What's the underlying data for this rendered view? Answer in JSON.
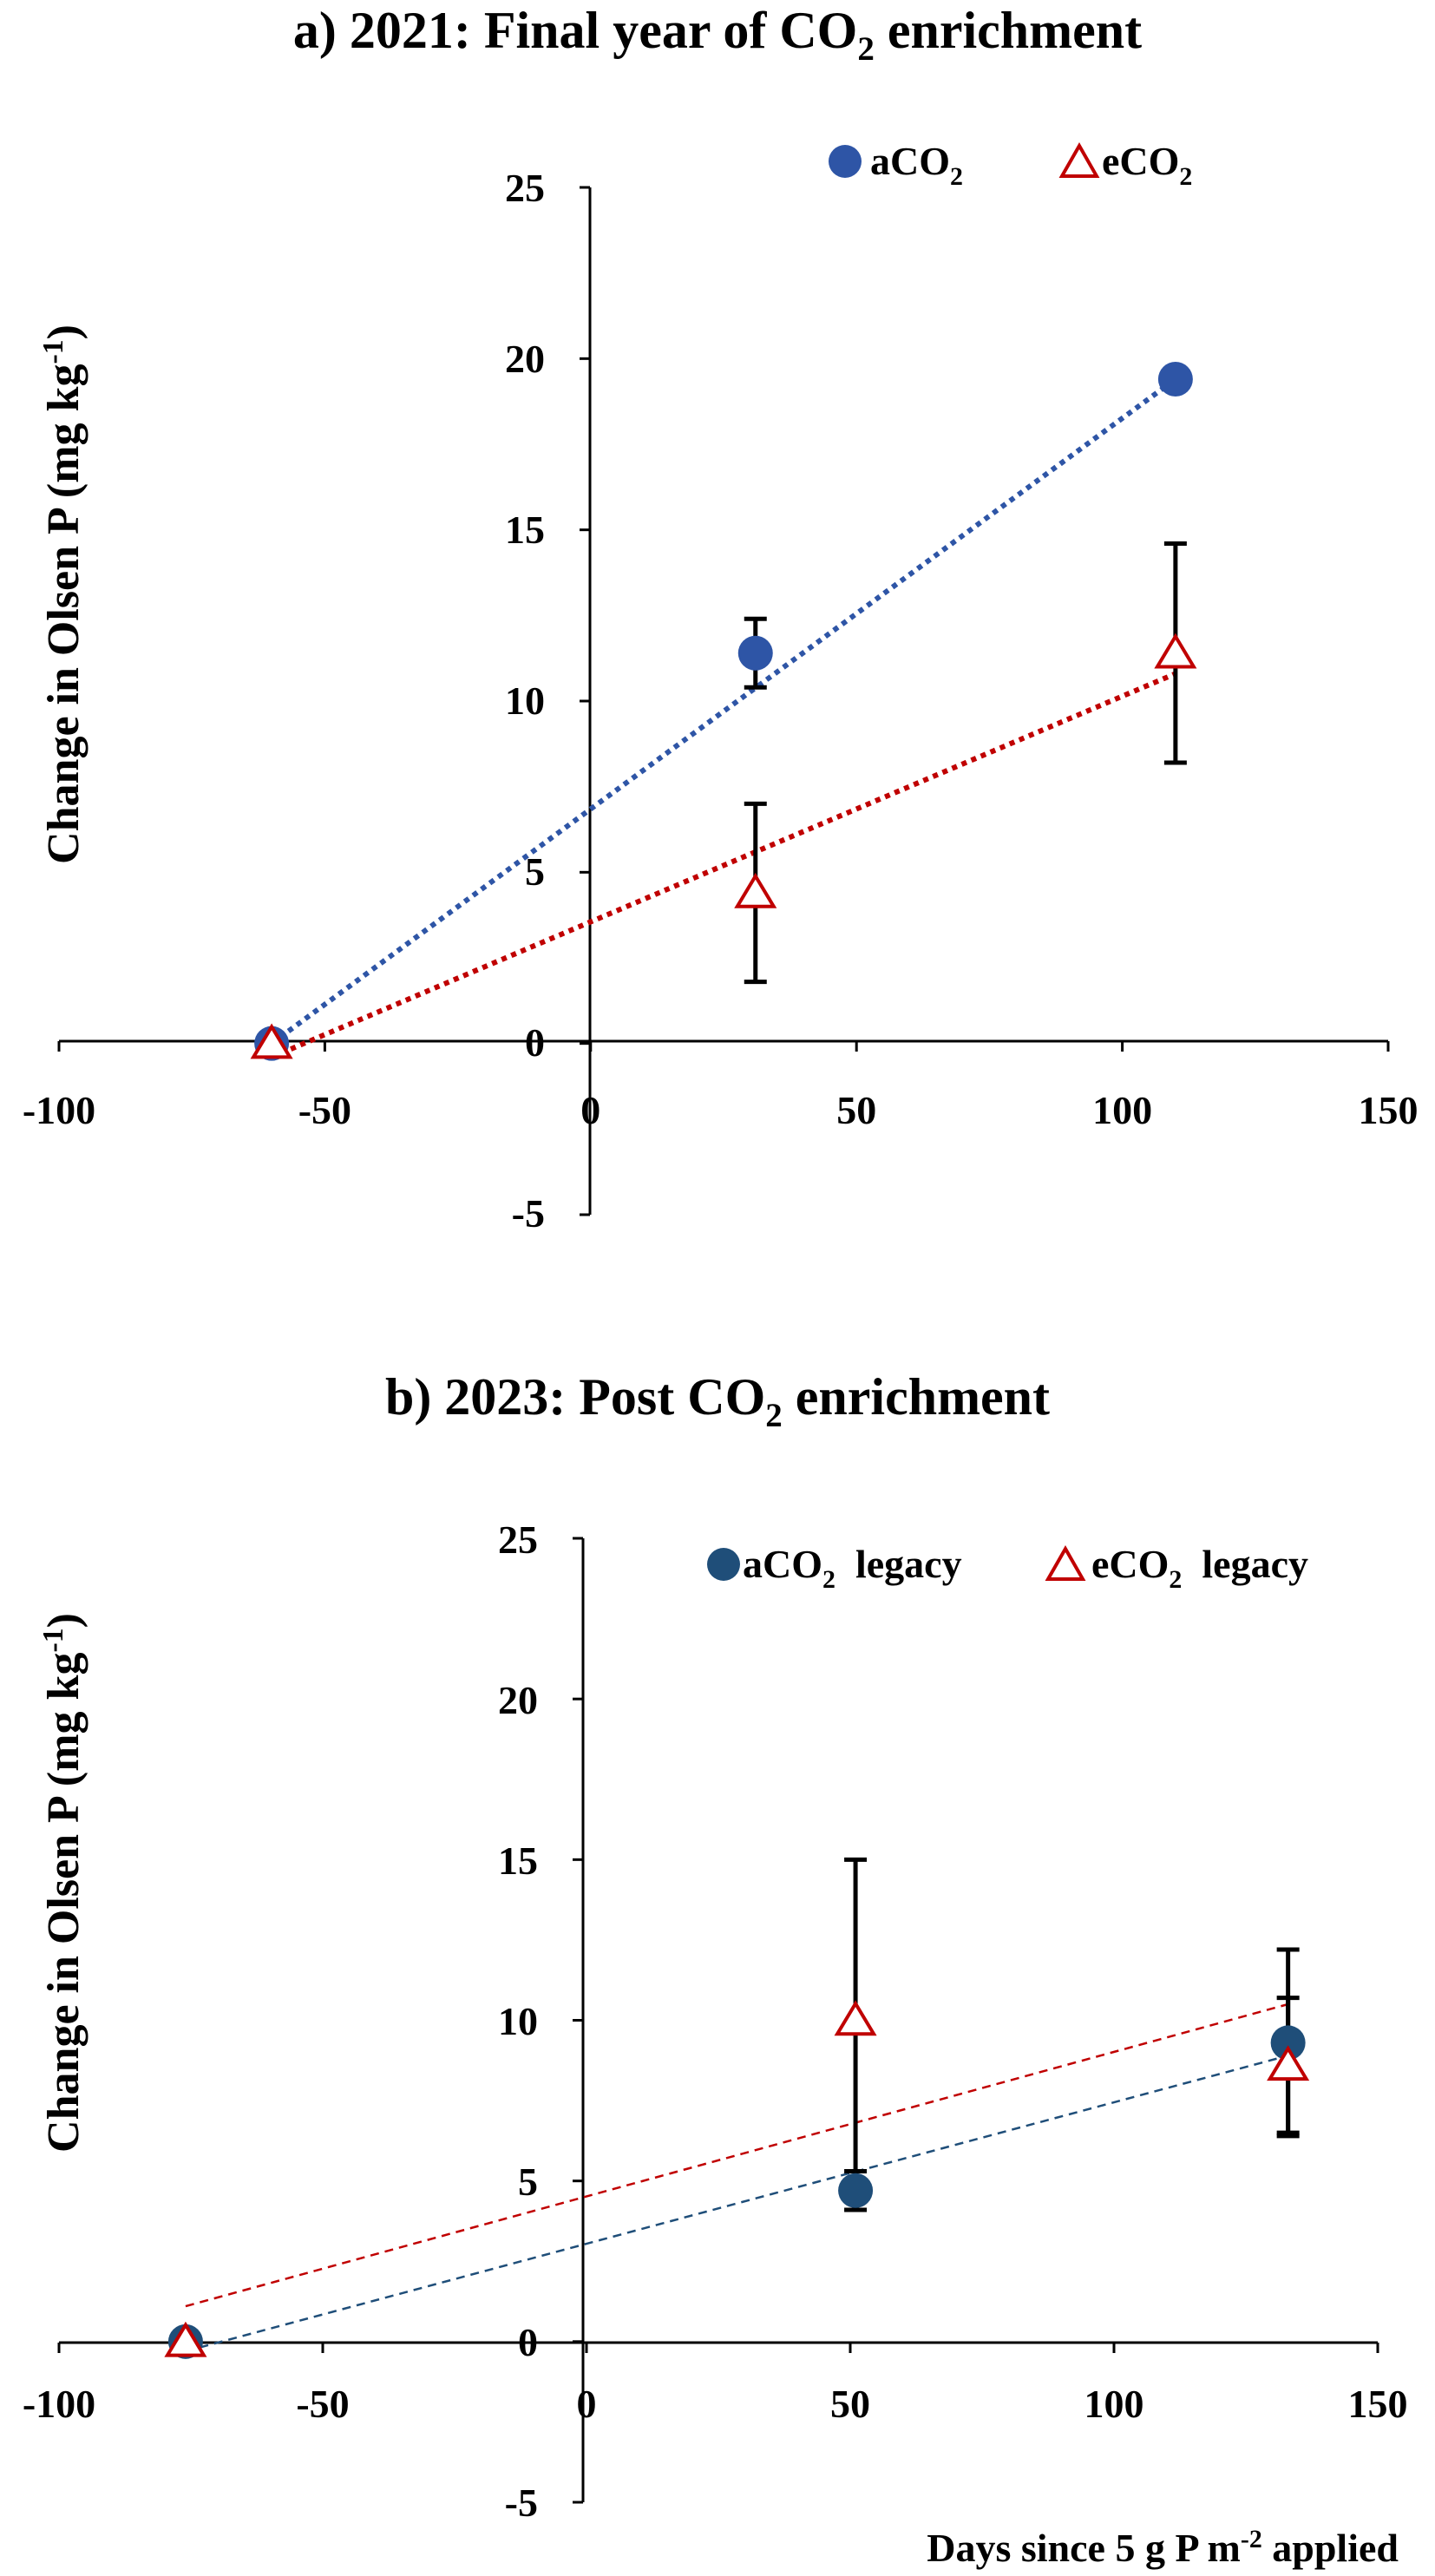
{
  "chart_data": [
    {
      "type": "scatter",
      "title": {
        "prefix": "a) 2021: Final year of CO",
        "sub": "2",
        "suffix": " enrichment"
      },
      "ylabel": {
        "main": "Change in Olsen P (mg kg",
        "sup": "-1",
        "end": ")"
      },
      "xlabel": "",
      "xlim": [
        -100,
        150
      ],
      "ylim": [
        -5,
        25
      ],
      "xticks": [
        "-100",
        "-50",
        "0",
        "50",
        "100",
        "150"
      ],
      "yticks": [
        "25",
        "20",
        "15",
        "10",
        "5",
        "0",
        "-5"
      ],
      "legend_position": "top-right",
      "series": [
        {
          "name": {
            "main": "aCO",
            "sub": "2",
            "end": ""
          },
          "marker": "circle",
          "color": "#2e55a6",
          "points": [
            {
              "x": -60,
              "y": 0,
              "err": 0
            },
            {
              "x": 31,
              "y": 11.4,
              "err": 1
            },
            {
              "x": 110,
              "y": 19.4,
              "err": 0
            }
          ],
          "trendline": {
            "from": [
              -60,
              0
            ],
            "to": [
              110,
              19.4
            ],
            "style": "dotted"
          }
        },
        {
          "name": {
            "main": "eCO",
            "sub": "2",
            "end": ""
          },
          "marker": "triangle",
          "color": "#c00000",
          "points": [
            {
              "x": -60,
              "y": 0,
              "err": 0
            },
            {
              "x": 31,
              "y": 4.4,
              "err": 2.6
            },
            {
              "x": 110,
              "y": 11.4,
              "err": 3.2
            }
          ],
          "trendline": {
            "from": [
              -60,
              -0.4
            ],
            "to": [
              110,
              10.8
            ],
            "style": "dotted"
          }
        }
      ]
    },
    {
      "type": "scatter",
      "title": {
        "prefix": "b) 2023: Post CO",
        "sub": "2",
        "suffix": " enrichment"
      },
      "ylabel": {
        "main": "Change in Olsen P (mg kg",
        "sup": "-1",
        "end": ")"
      },
      "xlabel": {
        "main": "Days since 5 g P m",
        "sup": "-2",
        "end": " applied"
      },
      "xlim": [
        -100,
        150
      ],
      "ylim": [
        -5,
        25
      ],
      "xticks": [
        "-100",
        "-50",
        "0",
        "50",
        "100",
        "150"
      ],
      "yticks": [
        "25",
        "20",
        "15",
        "10",
        "5",
        "0",
        "-5"
      ],
      "legend_position": "top-right",
      "series": [
        {
          "name": {
            "main": "aCO",
            "sub": "2",
            "end": "  legacy"
          },
          "marker": "circle",
          "color": "#1f4e79",
          "points": [
            {
              "x": -76,
              "y": 0,
              "err": 0
            },
            {
              "x": 51,
              "y": 4.7,
              "err": 0.6
            },
            {
              "x": 133,
              "y": 9.3,
              "err": 2.9
            }
          ],
          "trendline": {
            "from": [
              -76,
              -0.3
            ],
            "to": [
              133,
              8.9
            ],
            "style": "dashed"
          }
        },
        {
          "name": {
            "main": "eCO",
            "sub": "2",
            "end": "  legacy"
          },
          "marker": "triangle",
          "color": "#c00000",
          "points": [
            {
              "x": -76,
              "y": 0,
              "err": 0
            },
            {
              "x": 51,
              "y": 10,
              "err": 5
            },
            {
              "x": 133,
              "y": 8.6,
              "err": 2.1
            }
          ],
          "trendline": {
            "from": [
              -76,
              1.1
            ],
            "to": [
              133,
              10.5
            ],
            "style": "dashed"
          }
        }
      ]
    }
  ]
}
